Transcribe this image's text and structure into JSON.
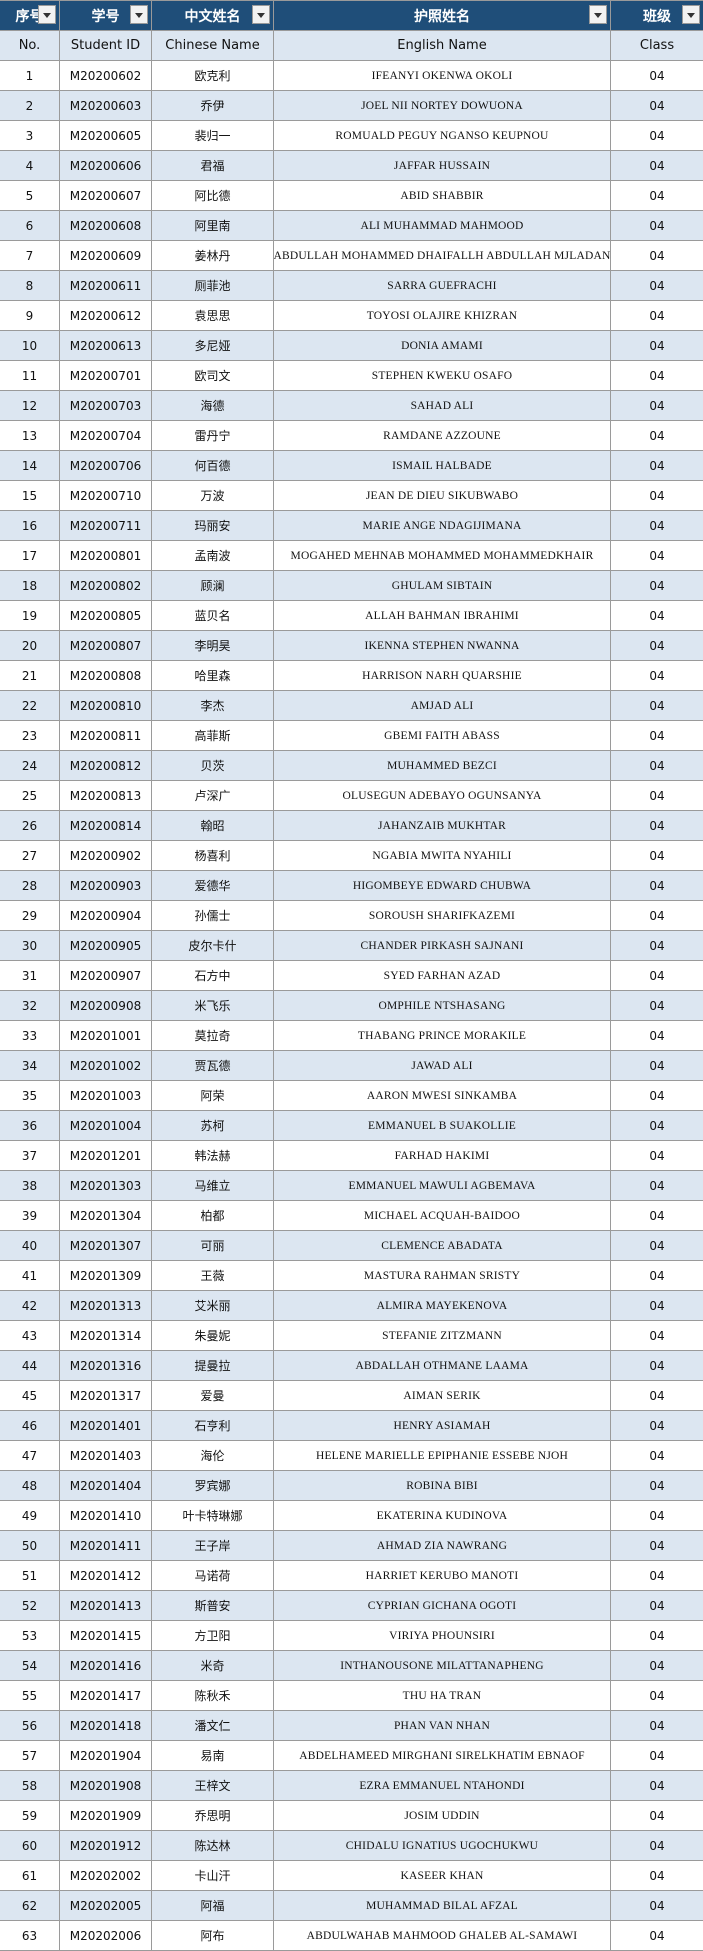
{
  "table": {
    "header1": [
      "序号",
      "学号",
      "中文姓名",
      "护照姓名",
      "班级"
    ],
    "header2": [
      "No.",
      "Student ID",
      "Chinese Name",
      "English Name",
      "Class"
    ],
    "rows": [
      [
        "1",
        "M20200602",
        "欧克利",
        "IFEANYI OKENWA OKOLI",
        "04"
      ],
      [
        "2",
        "M20200603",
        "乔伊",
        "JOEL NII NORTEY DOWUONA",
        "04"
      ],
      [
        "3",
        "M20200605",
        "裴归一",
        "ROMUALD PEGUY NGANSO KEUPNOU",
        "04"
      ],
      [
        "4",
        "M20200606",
        "君福",
        "JAFFAR HUSSAIN",
        "04"
      ],
      [
        "5",
        "M20200607",
        "阿比德",
        "ABID SHABBIR",
        "04"
      ],
      [
        "6",
        "M20200608",
        "阿里南",
        "ALI MUHAMMAD MAHMOOD",
        "04"
      ],
      [
        "7",
        "M20200609",
        "姜林丹",
        "ABDULLAH MOHAMMED DHAIFALLH ABDULLAH MJLADAN",
        "04"
      ],
      [
        "8",
        "M20200611",
        "厕菲池",
        "SARRA GUEFRACHI",
        "04"
      ],
      [
        "9",
        "M20200612",
        "袁思思",
        "TOYOSI OLAJIRE KHIZRAN",
        "04"
      ],
      [
        "10",
        "M20200613",
        "多尼娅",
        "DONIA AMAMI",
        "04"
      ],
      [
        "11",
        "M20200701",
        "欧司文",
        "STEPHEN KWEKU OSAFO",
        "04"
      ],
      [
        "12",
        "M20200703",
        "海德",
        "SAHAD ALI",
        "04"
      ],
      [
        "13",
        "M20200704",
        "雷丹宁",
        "RAMDANE AZZOUNE",
        "04"
      ],
      [
        "14",
        "M20200706",
        "何百德",
        "ISMAIL HALBADE",
        "04"
      ],
      [
        "15",
        "M20200710",
        "万波",
        "JEAN DE DIEU SIKUBWABO",
        "04"
      ],
      [
        "16",
        "M20200711",
        "玛丽安",
        "MARIE ANGE NDAGIJIMANA",
        "04"
      ],
      [
        "17",
        "M20200801",
        "孟南波",
        "MOGAHED MEHNAB MOHAMMED MOHAMMEDKHAIR",
        "04"
      ],
      [
        "18",
        "M20200802",
        "顾澜",
        "GHULAM SIBTAIN",
        "04"
      ],
      [
        "19",
        "M20200805",
        "蓝贝名",
        "ALLAH BAHMAN IBRAHIMI",
        "04"
      ],
      [
        "20",
        "M20200807",
        "李明昊",
        "IKENNA STEPHEN NWANNA",
        "04"
      ],
      [
        "21",
        "M20200808",
        "哈里森",
        "HARRISON NARH QUARSHIE",
        "04"
      ],
      [
        "22",
        "M20200810",
        "李杰",
        "AMJAD ALI",
        "04"
      ],
      [
        "23",
        "M20200811",
        "高菲斯",
        "GBEMI FAITH ABASS",
        "04"
      ],
      [
        "24",
        "M20200812",
        "贝茨",
        "MUHAMMED BEZCI",
        "04"
      ],
      [
        "25",
        "M20200813",
        "卢深广",
        "OLUSEGUN ADEBAYO OGUNSANYA",
        "04"
      ],
      [
        "26",
        "M20200814",
        "翰昭",
        "JAHANZAIB MUKHTAR",
        "04"
      ],
      [
        "27",
        "M20200902",
        "杨喜利",
        "NGABIA MWITA NYAHILI",
        "04"
      ],
      [
        "28",
        "M20200903",
        "爱德华",
        "HIGOMBEYE EDWARD CHUBWA",
        "04"
      ],
      [
        "29",
        "M20200904",
        "孙儒士",
        "SOROUSH SHARIFKAZEMI",
        "04"
      ],
      [
        "30",
        "M20200905",
        "皮尔卡什",
        "CHANDER PIRKASH SAJNANI",
        "04"
      ],
      [
        "31",
        "M20200907",
        "石方中",
        "SYED FARHAN AZAD",
        "04"
      ],
      [
        "32",
        "M20200908",
        "米飞乐",
        "OMPHILE NTSHASANG",
        "04"
      ],
      [
        "33",
        "M20201001",
        "莫拉奇",
        "THABANG PRINCE MORAKILE",
        "04"
      ],
      [
        "34",
        "M20201002",
        "贾瓦德",
        "JAWAD ALI",
        "04"
      ],
      [
        "35",
        "M20201003",
        "阿荣",
        "AARON MWESI SINKAMBA",
        "04"
      ],
      [
        "36",
        "M20201004",
        "苏柯",
        "EMMANUEL B SUAKOLLIE",
        "04"
      ],
      [
        "37",
        "M20201201",
        "韩法赫",
        "FARHAD HAKIMI",
        "04"
      ],
      [
        "38",
        "M20201303",
        "马维立",
        "EMMANUEL MAWULI AGBEMAVA",
        "04"
      ],
      [
        "39",
        "M20201304",
        "柏都",
        "MICHAEL ACQUAH-BAIDOO",
        "04"
      ],
      [
        "40",
        "M20201307",
        "可丽",
        "CLEMENCE ABADATA",
        "04"
      ],
      [
        "41",
        "M20201309",
        "王薇",
        "MASTURA RAHMAN SRISTY",
        "04"
      ],
      [
        "42",
        "M20201313",
        "艾米丽",
        "ALMIRA MAYEKENOVA",
        "04"
      ],
      [
        "43",
        "M20201314",
        "朱曼妮",
        "STEFANIE ZITZMANN",
        "04"
      ],
      [
        "44",
        "M20201316",
        "提曼拉",
        "ABDALLAH OTHMANE LAAMA",
        "04"
      ],
      [
        "45",
        "M20201317",
        "爱曼",
        "AIMAN SERIK",
        "04"
      ],
      [
        "46",
        "M20201401",
        "石亨利",
        "HENRY ASIAMAH",
        "04"
      ],
      [
        "47",
        "M20201403",
        "海伦",
        "HELENE MARIELLE EPIPHANIE ESSEBE NJOH",
        "04"
      ],
      [
        "48",
        "M20201404",
        "罗宾娜",
        "ROBINA BIBI",
        "04"
      ],
      [
        "49",
        "M20201410",
        "叶卡特琳娜",
        "EKATERINA KUDINOVA",
        "04"
      ],
      [
        "50",
        "M20201411",
        "王子岸",
        "AHMAD ZIA NAWRANG",
        "04"
      ],
      [
        "51",
        "M20201412",
        "马诺荷",
        "HARRIET KERUBO MANOTI",
        "04"
      ],
      [
        "52",
        "M20201413",
        "斯普安",
        "CYPRIAN GICHANA OGOTI",
        "04"
      ],
      [
        "53",
        "M20201415",
        "方卫阳",
        "VIRIYA PHOUNSIRI",
        "04"
      ],
      [
        "54",
        "M20201416",
        "米奇",
        "INTHANOUSONE MILATTANAPHENG",
        "04"
      ],
      [
        "55",
        "M20201417",
        "陈秋禾",
        "THU HA TRAN",
        "04"
      ],
      [
        "56",
        "M20201418",
        "潘文仁",
        "PHAN VAN NHAN",
        "04"
      ],
      [
        "57",
        "M20201904",
        "易南",
        "ABDELHAMEED MIRGHANI SIRELKHATIM EBNAOF",
        "04"
      ],
      [
        "58",
        "M20201908",
        "王梓文",
        "EZRA EMMANUEL NTAHONDI",
        "04"
      ],
      [
        "59",
        "M20201909",
        "乔思明",
        "JOSIM UDDIN",
        "04"
      ],
      [
        "60",
        "M20201912",
        "陈达林",
        "CHIDALU IGNATIUS UGOCHUKWU",
        "04"
      ],
      [
        "61",
        "M20202002",
        "卡山汗",
        "KASEER KHAN",
        "04"
      ],
      [
        "62",
        "M20202005",
        "阿福",
        "MUHAMMAD BILAL AFZAL",
        "04"
      ],
      [
        "63",
        "M20202006",
        "阿布",
        "ABDULWAHAB MAHMOOD GHALEB AL-SAMAWI",
        "04"
      ]
    ]
  }
}
